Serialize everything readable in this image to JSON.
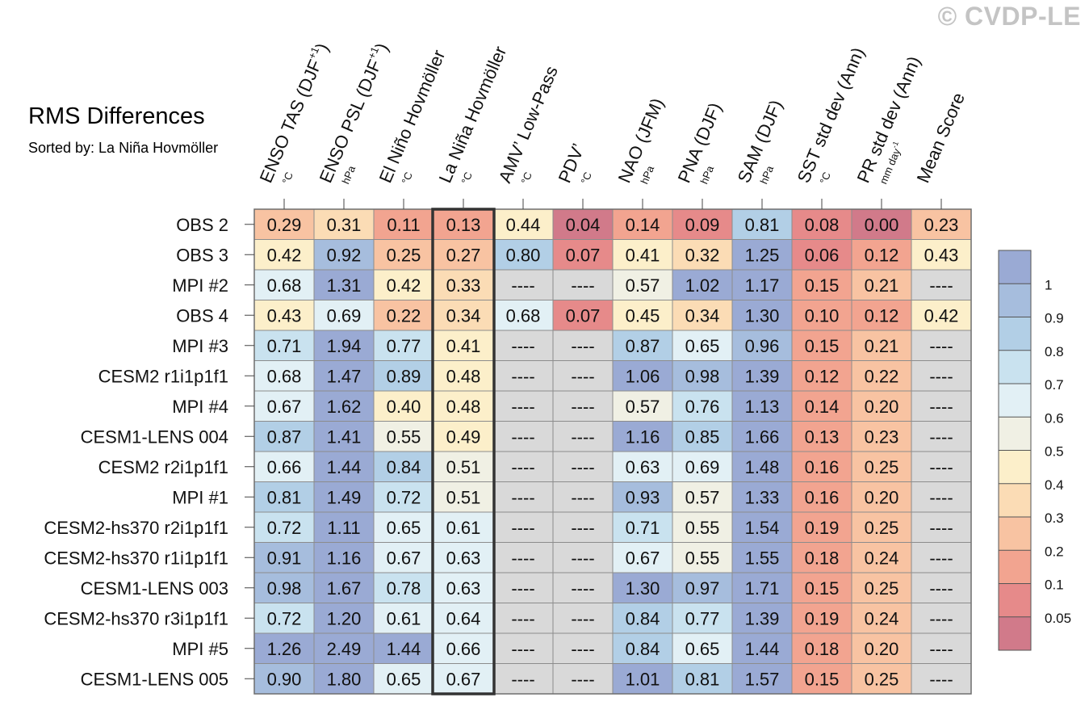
{
  "copyright": "© CVDP-LE",
  "chart_data": {
    "type": "heatmap",
    "title": "RMS Differences",
    "subtitle": "Sorted by: La Niña Hovmöller",
    "columns": [
      {
        "name": "ENSO TAS (DJF",
        "sup": "+1",
        "close": ")",
        "unit": "°C"
      },
      {
        "name": "ENSO PSL (DJF",
        "sup": "+1",
        "close": ")",
        "unit": "hPa"
      },
      {
        "name": "El Niño Hovmöller",
        "sup": "",
        "close": "",
        "unit": "°C"
      },
      {
        "name": "La Niña Hovmöller",
        "sup": "",
        "close": "",
        "unit": "°C"
      },
      {
        "name": "AMV’ Low-Pass",
        "sup": "",
        "close": "",
        "unit": "°C"
      },
      {
        "name": "PDV’",
        "sup": "",
        "close": "",
        "unit": "°C"
      },
      {
        "name": "NAO (JFM)",
        "sup": "",
        "close": "",
        "unit": "hPa"
      },
      {
        "name": "PNA (DJF)",
        "sup": "",
        "close": "",
        "unit": "hPa"
      },
      {
        "name": "SAM (DJF)",
        "sup": "",
        "close": "",
        "unit": "hPa"
      },
      {
        "name": "SST std dev (Ann)",
        "sup": "",
        "close": "",
        "unit": "°C"
      },
      {
        "name": "PR std dev (Ann)",
        "sup": "",
        "close": "",
        "unit": "mm day",
        "unit_sup": "-1"
      },
      {
        "name": "Mean Score",
        "sup": "",
        "close": "",
        "unit": ""
      }
    ],
    "highlight_column": 3,
    "rows": [
      {
        "name": "OBS 2",
        "values": [
          "0.29",
          "0.31",
          "0.11",
          "0.13",
          "0.44",
          "0.04",
          "0.14",
          "0.09",
          "0.81",
          "0.08",
          "0.00",
          "0.23"
        ]
      },
      {
        "name": "OBS 3",
        "values": [
          "0.42",
          "0.92",
          "0.25",
          "0.27",
          "0.80",
          "0.07",
          "0.41",
          "0.32",
          "1.25",
          "0.06",
          "0.12",
          "0.43"
        ]
      },
      {
        "name": "MPI #2",
        "values": [
          "0.68",
          "1.31",
          "0.42",
          "0.33",
          "----",
          "----",
          "0.57",
          "1.02",
          "1.17",
          "0.15",
          "0.21",
          "----"
        ]
      },
      {
        "name": "OBS 4",
        "values": [
          "0.43",
          "0.69",
          "0.22",
          "0.34",
          "0.68",
          "0.07",
          "0.45",
          "0.34",
          "1.30",
          "0.10",
          "0.12",
          "0.42"
        ]
      },
      {
        "name": "MPI #3",
        "values": [
          "0.71",
          "1.94",
          "0.77",
          "0.41",
          "----",
          "----",
          "0.87",
          "0.65",
          "0.96",
          "0.15",
          "0.21",
          "----"
        ]
      },
      {
        "name": "CESM2 r1i1p1f1",
        "values": [
          "0.68",
          "1.47",
          "0.89",
          "0.48",
          "----",
          "----",
          "1.06",
          "0.98",
          "1.39",
          "0.12",
          "0.22",
          "----"
        ]
      },
      {
        "name": "MPI #4",
        "values": [
          "0.67",
          "1.62",
          "0.40",
          "0.48",
          "----",
          "----",
          "0.57",
          "0.76",
          "1.13",
          "0.14",
          "0.20",
          "----"
        ]
      },
      {
        "name": "CESM1-LENS 004",
        "values": [
          "0.87",
          "1.41",
          "0.55",
          "0.49",
          "----",
          "----",
          "1.16",
          "0.85",
          "1.66",
          "0.13",
          "0.23",
          "----"
        ]
      },
      {
        "name": "CESM2 r2i1p1f1",
        "values": [
          "0.66",
          "1.44",
          "0.84",
          "0.51",
          "----",
          "----",
          "0.63",
          "0.69",
          "1.48",
          "0.16",
          "0.25",
          "----"
        ]
      },
      {
        "name": "MPI #1",
        "values": [
          "0.81",
          "1.49",
          "0.72",
          "0.51",
          "----",
          "----",
          "0.93",
          "0.57",
          "1.33",
          "0.16",
          "0.20",
          "----"
        ]
      },
      {
        "name": "CESM2-hs370 r2i1p1f1",
        "values": [
          "0.72",
          "1.11",
          "0.65",
          "0.61",
          "----",
          "----",
          "0.71",
          "0.55",
          "1.54",
          "0.19",
          "0.25",
          "----"
        ]
      },
      {
        "name": "CESM2-hs370 r1i1p1f1",
        "values": [
          "0.91",
          "1.16",
          "0.67",
          "0.63",
          "----",
          "----",
          "0.67",
          "0.55",
          "1.55",
          "0.18",
          "0.24",
          "----"
        ]
      },
      {
        "name": "CESM1-LENS 003",
        "values": [
          "0.98",
          "1.67",
          "0.78",
          "0.63",
          "----",
          "----",
          "1.30",
          "0.97",
          "1.71",
          "0.15",
          "0.25",
          "----"
        ]
      },
      {
        "name": "CESM2-hs370 r3i1p1f1",
        "values": [
          "0.72",
          "1.20",
          "0.61",
          "0.64",
          "----",
          "----",
          "0.84",
          "0.77",
          "1.39",
          "0.19",
          "0.24",
          "----"
        ]
      },
      {
        "name": "MPI #5",
        "values": [
          "1.26",
          "2.49",
          "1.44",
          "0.66",
          "----",
          "----",
          "0.84",
          "0.65",
          "1.44",
          "0.18",
          "0.20",
          "----"
        ]
      },
      {
        "name": "CESM1-LENS 005",
        "values": [
          "0.90",
          "1.80",
          "0.65",
          "0.67",
          "----",
          "----",
          "1.01",
          "0.81",
          "1.57",
          "0.15",
          "0.25",
          "----"
        ]
      }
    ],
    "missing_marker": "----",
    "colorbar": {
      "levels": [
        0.05,
        0.1,
        0.2,
        0.3,
        0.4,
        0.5,
        0.6,
        0.7,
        0.8,
        0.9,
        1
      ],
      "labels": [
        "0.05",
        "0.1",
        "0.2",
        "0.3",
        "0.4",
        "0.5",
        "0.6",
        "0.7",
        "0.8",
        "0.9",
        "1"
      ],
      "colors": [
        "#d17a8a",
        "#e68a8a",
        "#f2a490",
        "#f8c3a2",
        "#fbdcb5",
        "#fcefca",
        "#f0f0e4",
        "#e2f0f5",
        "#c9e2ef",
        "#b2cfe6",
        "#a6bddd",
        "#9aaad4"
      ],
      "missing_color": "#d9d9d9"
    }
  }
}
